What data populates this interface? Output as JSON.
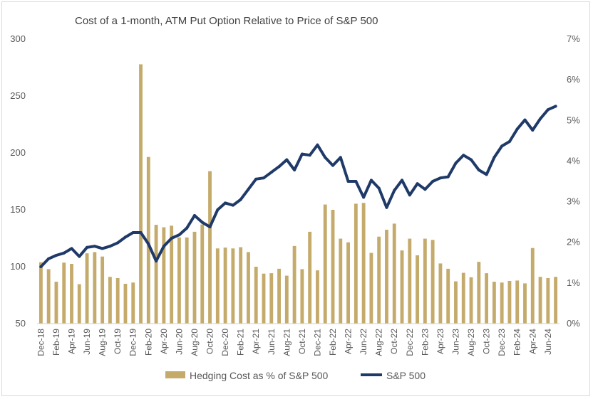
{
  "chart_data": {
    "type": "bar",
    "title": "Cost of a 1-month, ATM Put Option Relative to Price of S&P 500",
    "left_axis": {
      "ylim": [
        50,
        300
      ],
      "ticks": [
        "50",
        "100",
        "150",
        "200",
        "250",
        "300"
      ]
    },
    "right_axis": {
      "ylim": [
        0,
        7
      ],
      "ticks": [
        "0%",
        "1%",
        "2%",
        "3%",
        "4%",
        "5%",
        "6%",
        "7%"
      ]
    },
    "x_tick_labels": [
      "Dec-18",
      "Feb-19",
      "Apr-19",
      "Jun-19",
      "Aug-19",
      "Oct-19",
      "Dec-19",
      "Feb-20",
      "Apr-20",
      "Jun-20",
      "Aug-20",
      "Oct-20",
      "Dec-20",
      "Feb-21",
      "Apr-21",
      "Jun-21",
      "Aug-21",
      "Oct-21",
      "Dec-21",
      "Feb-22",
      "Apr-22",
      "Jun-22",
      "Aug-22",
      "Oct-22",
      "Dec-22",
      "Feb-23",
      "Apr-23",
      "Jun-23",
      "Aug-23",
      "Oct-23",
      "Dec-23",
      "Feb-24",
      "Apr-24",
      "Jun-24"
    ],
    "categories": [
      "Dec-18",
      "Jan-19",
      "Feb-19",
      "Mar-19",
      "Apr-19",
      "May-19",
      "Jun-19",
      "Jul-19",
      "Aug-19",
      "Sep-19",
      "Oct-19",
      "Nov-19",
      "Dec-19",
      "Jan-20",
      "Feb-20",
      "Mar-20",
      "Apr-20",
      "May-20",
      "Jun-20",
      "Jul-20",
      "Aug-20",
      "Sep-20",
      "Oct-20",
      "Nov-20",
      "Dec-20",
      "Jan-21",
      "Feb-21",
      "Mar-21",
      "Apr-21",
      "May-21",
      "Jun-21",
      "Jul-21",
      "Aug-21",
      "Sep-21",
      "Oct-21",
      "Nov-21",
      "Dec-21",
      "Jan-22",
      "Feb-22",
      "Mar-22",
      "Apr-22",
      "May-22",
      "Jun-22",
      "Jul-22",
      "Aug-22",
      "Sep-22",
      "Oct-22",
      "Nov-22",
      "Dec-22",
      "Jan-23",
      "Feb-23",
      "Mar-23",
      "Apr-23",
      "May-23",
      "Jun-23",
      "Jul-23",
      "Aug-23",
      "Sep-23",
      "Oct-23",
      "Nov-23",
      "Dec-23",
      "Jan-24",
      "Feb-24",
      "Mar-24",
      "Apr-24",
      "May-24",
      "Jun-24",
      "Jul-24"
    ],
    "series": [
      {
        "name": "Hedging Cost as % of S&P 500",
        "type": "bar",
        "axis": "right",
        "color": "#C4AB6C",
        "values": [
          1.51,
          1.34,
          1.03,
          1.5,
          1.47,
          0.97,
          1.73,
          1.76,
          1.65,
          1.15,
          1.12,
          0.98,
          1.01,
          6.38,
          4.1,
          2.43,
          2.37,
          2.41,
          2.12,
          2.12,
          2.26,
          2.44,
          3.75,
          1.85,
          1.87,
          1.85,
          1.88,
          1.76,
          1.4,
          1.23,
          1.24,
          1.35,
          1.18,
          1.91,
          1.34,
          2.26,
          1.31,
          2.93,
          2.8,
          2.09,
          2.0,
          2.95,
          2.97,
          1.74,
          2.14,
          2.31,
          2.46,
          1.8,
          2.09,
          1.68,
          2.09,
          2.06,
          1.48,
          1.35,
          1.04,
          1.25,
          1.14,
          1.52,
          1.24,
          1.03,
          1.01,
          1.05,
          1.06,
          0.99,
          1.86,
          1.15,
          1.12,
          1.15
        ]
      },
      {
        "name": "S&P 500",
        "type": "line",
        "axis": "left",
        "color": "#1F3A68",
        "values": [
          100,
          107,
          110,
          112,
          116,
          109,
          117,
          118,
          116,
          118,
          121,
          126,
          130,
          130,
          120,
          105,
          118,
          125,
          128,
          134,
          145,
          139,
          135,
          150,
          156,
          154,
          159,
          168,
          177,
          178,
          183,
          188,
          194,
          185,
          199,
          198,
          207,
          196,
          189,
          196,
          175,
          175,
          161,
          176,
          169,
          152,
          167,
          176,
          163,
          173,
          168,
          175,
          178,
          179,
          191,
          198,
          194,
          185,
          181,
          196,
          206,
          210,
          221,
          229,
          220,
          230,
          238,
          241
        ]
      }
    ],
    "legend": {
      "position": "bottom"
    },
    "grid": false
  }
}
